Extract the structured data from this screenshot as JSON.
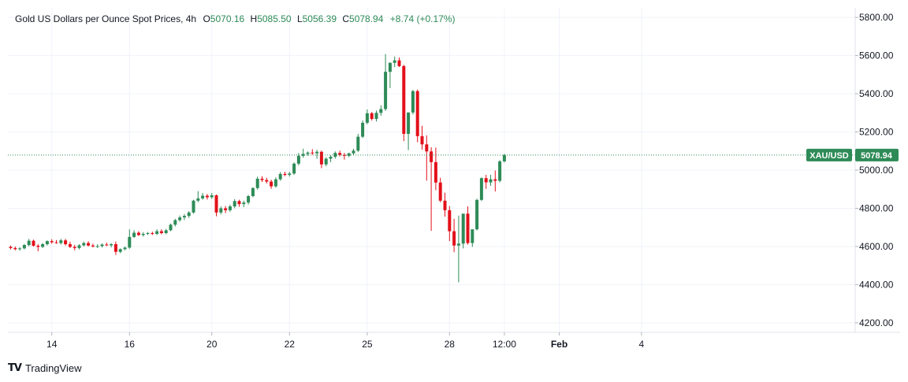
{
  "legend": {
    "title": "Gold US Dollars per Ounce Spot Prices, 4h",
    "o_label": "O",
    "o_value": "5070.16",
    "h_label": "H",
    "h_value": "5085.50",
    "l_label": "L",
    "l_value": "5056.39",
    "c_label": "C",
    "c_value": "5078.94",
    "change": "+8.74 (+0.17%)"
  },
  "price_tag": {
    "symbol": "XAU/USD",
    "value": "5078.94"
  },
  "watermark": {
    "logo": "TV",
    "text": "TradingView"
  },
  "colors": {
    "up": "#2e8b57",
    "down": "#e3101a",
    "grid": "#f0f3fa",
    "axis_text": "#131722",
    "legend_value": "#2e8b57",
    "tag_bg": "#2e8b57",
    "last_price_line": "#2e8b57"
  },
  "chart_data": {
    "type": "candlestick",
    "title": "Gold US Dollars per Ounce Spot Prices, 4h",
    "ylim": [
      4150,
      5850
    ],
    "y_ticks": [
      4200,
      4400,
      4600,
      4800,
      5000,
      5200,
      5400,
      5600,
      5800
    ],
    "y_tick_labels": [
      "4200.00",
      "4400.00",
      "4600.00",
      "4800.00",
      "5000.00",
      "5200.00",
      "5400.00",
      "5600.00",
      "5800.00"
    ],
    "x_ticks": [
      {
        "label": "14",
        "bar": 9,
        "bold": false
      },
      {
        "label": "16",
        "bar": 26,
        "bold": false
      },
      {
        "label": "20",
        "bar": 44,
        "bold": false
      },
      {
        "label": "22",
        "bar": 61,
        "bold": false
      },
      {
        "label": "25",
        "bar": 78,
        "bold": false
      },
      {
        "label": "28",
        "bar": 96,
        "bold": false
      },
      {
        "label": "12:00",
        "bar": 108,
        "bold": false
      },
      {
        "label": "Feb",
        "bar": 120,
        "bold": true
      },
      {
        "label": "4",
        "bar": 138,
        "bold": false
      }
    ],
    "last_price": 5078.94,
    "grid": true,
    "candles": [
      [
        4598,
        4605,
        4585,
        4592
      ],
      [
        4592,
        4600,
        4580,
        4586
      ],
      [
        4586,
        4596,
        4578,
        4590
      ],
      [
        4590,
        4612,
        4585,
        4608
      ],
      [
        4608,
        4640,
        4600,
        4630
      ],
      [
        4630,
        4636,
        4600,
        4604
      ],
      [
        4604,
        4612,
        4575,
        4598
      ],
      [
        4598,
        4618,
        4592,
        4612
      ],
      [
        4612,
        4632,
        4605,
        4628
      ],
      [
        4628,
        4638,
        4615,
        4622
      ],
      [
        4622,
        4634,
        4614,
        4618
      ],
      [
        4618,
        4640,
        4610,
        4632
      ],
      [
        4632,
        4640,
        4605,
        4612
      ],
      [
        4612,
        4625,
        4592,
        4598
      ],
      [
        4598,
        4608,
        4580,
        4592
      ],
      [
        4592,
        4612,
        4585,
        4606
      ],
      [
        4606,
        4625,
        4600,
        4618
      ],
      [
        4618,
        4628,
        4600,
        4605
      ],
      [
        4605,
        4615,
        4595,
        4600
      ],
      [
        4600,
        4612,
        4592,
        4602
      ],
      [
        4602,
        4616,
        4595,
        4610
      ],
      [
        4610,
        4620,
        4602,
        4606
      ],
      [
        4606,
        4618,
        4595,
        4612
      ],
      [
        4612,
        4626,
        4556,
        4572
      ],
      [
        4572,
        4590,
        4565,
        4586
      ],
      [
        4586,
        4600,
        4580,
        4594
      ],
      [
        4594,
        4690,
        4588,
        4650
      ],
      [
        4650,
        4685,
        4645,
        4672
      ],
      [
        4672,
        4680,
        4655,
        4660
      ],
      [
        4660,
        4675,
        4652,
        4666
      ],
      [
        4666,
        4676,
        4660,
        4670
      ],
      [
        4670,
        4678,
        4660,
        4666
      ],
      [
        4666,
        4690,
        4660,
        4680
      ],
      [
        4680,
        4690,
        4664,
        4670
      ],
      [
        4670,
        4692,
        4664,
        4685
      ],
      [
        4685,
        4720,
        4680,
        4714
      ],
      [
        4714,
        4745,
        4705,
        4738
      ],
      [
        4738,
        4762,
        4730,
        4752
      ],
      [
        4752,
        4770,
        4738,
        4760
      ],
      [
        4760,
        4785,
        4750,
        4778
      ],
      [
        4778,
        4845,
        4772,
        4840
      ],
      [
        4840,
        4890,
        4832,
        4852
      ],
      [
        4852,
        4880,
        4845,
        4866
      ],
      [
        4866,
        4875,
        4846,
        4858
      ],
      [
        4858,
        4880,
        4850,
        4868
      ],
      [
        4868,
        4872,
        4758,
        4778
      ],
      [
        4778,
        4810,
        4768,
        4800
      ],
      [
        4800,
        4812,
        4775,
        4790
      ],
      [
        4790,
        4818,
        4782,
        4810
      ],
      [
        4810,
        4848,
        4800,
        4838
      ],
      [
        4838,
        4845,
        4808,
        4822
      ],
      [
        4822,
        4840,
        4806,
        4830
      ],
      [
        4830,
        4870,
        4820,
        4864
      ],
      [
        4864,
        4910,
        4858,
        4906
      ],
      [
        4906,
        4966,
        4898,
        4955
      ],
      [
        4955,
        4968,
        4938,
        4948
      ],
      [
        4948,
        4960,
        4930,
        4940
      ],
      [
        4940,
        4950,
        4902,
        4915
      ],
      [
        4915,
        4962,
        4908,
        4952
      ],
      [
        4952,
        4990,
        4944,
        4980
      ],
      [
        4980,
        4992,
        4968,
        4975
      ],
      [
        4975,
        4992,
        4966,
        4982
      ],
      [
        4982,
        5040,
        4976,
        5034
      ],
      [
        5034,
        5090,
        5025,
        5075
      ],
      [
        5075,
        5112,
        5065,
        5085
      ],
      [
        5085,
        5098,
        5075,
        5092
      ],
      [
        5092,
        5110,
        5080,
        5088
      ],
      [
        5088,
        5106,
        5060,
        5096
      ],
      [
        5096,
        5102,
        5010,
        5030
      ],
      [
        5030,
        5068,
        5020,
        5060
      ],
      [
        5060,
        5078,
        5042,
        5070
      ],
      [
        5070,
        5098,
        5060,
        5090
      ],
      [
        5090,
        5102,
        5072,
        5080
      ],
      [
        5080,
        5090,
        5055,
        5075
      ],
      [
        5075,
        5092,
        5068,
        5088
      ],
      [
        5088,
        5112,
        5080,
        5102
      ],
      [
        5102,
        5190,
        5095,
        5175
      ],
      [
        5175,
        5260,
        5168,
        5248
      ],
      [
        5248,
        5318,
        5240,
        5298
      ],
      [
        5298,
        5305,
        5260,
        5268
      ],
      [
        5268,
        5312,
        5255,
        5300
      ],
      [
        5300,
        5340,
        5285,
        5320
      ],
      [
        5320,
        5608,
        5310,
        5515
      ],
      [
        5515,
        5565,
        5430,
        5562
      ],
      [
        5562,
        5595,
        5540,
        5575
      ],
      [
        5575,
        5590,
        5540,
        5545
      ],
      [
        5545,
        5552,
        5152,
        5190
      ],
      [
        5190,
        5302,
        5105,
        5302
      ],
      [
        5302,
        5420,
        5292,
        5414
      ],
      [
        5414,
        5422,
        5146,
        5178
      ],
      [
        5178,
        5232,
        5108,
        5135
      ],
      [
        5135,
        5182,
        4945,
        5098
      ],
      [
        5098,
        5120,
        4682,
        5042
      ],
      [
        5042,
        5118,
        4895,
        4935
      ],
      [
        4935,
        4960,
        4832,
        4840
      ],
      [
        4840,
        4882,
        4756,
        4790
      ],
      [
        4790,
        4812,
        4628,
        4680
      ],
      [
        4680,
        4745,
        4570,
        4605
      ],
      [
        4605,
        4762,
        4412,
        4615
      ],
      [
        4615,
        4770,
        4590,
        4772
      ],
      [
        4772,
        4810,
        4610,
        4618
      ],
      [
        4618,
        4688,
        4598,
        4690
      ],
      [
        4690,
        4850,
        4684,
        4844
      ],
      [
        4844,
        4962,
        4838,
        4958
      ],
      [
        4958,
        4975,
        4902,
        4936
      ],
      [
        4936,
        4975,
        4918,
        4952
      ],
      [
        4952,
        4998,
        4888,
        4944
      ],
      [
        4944,
        5052,
        4936,
        5046
      ],
      [
        5046,
        5085,
        5040,
        5079
      ]
    ]
  }
}
